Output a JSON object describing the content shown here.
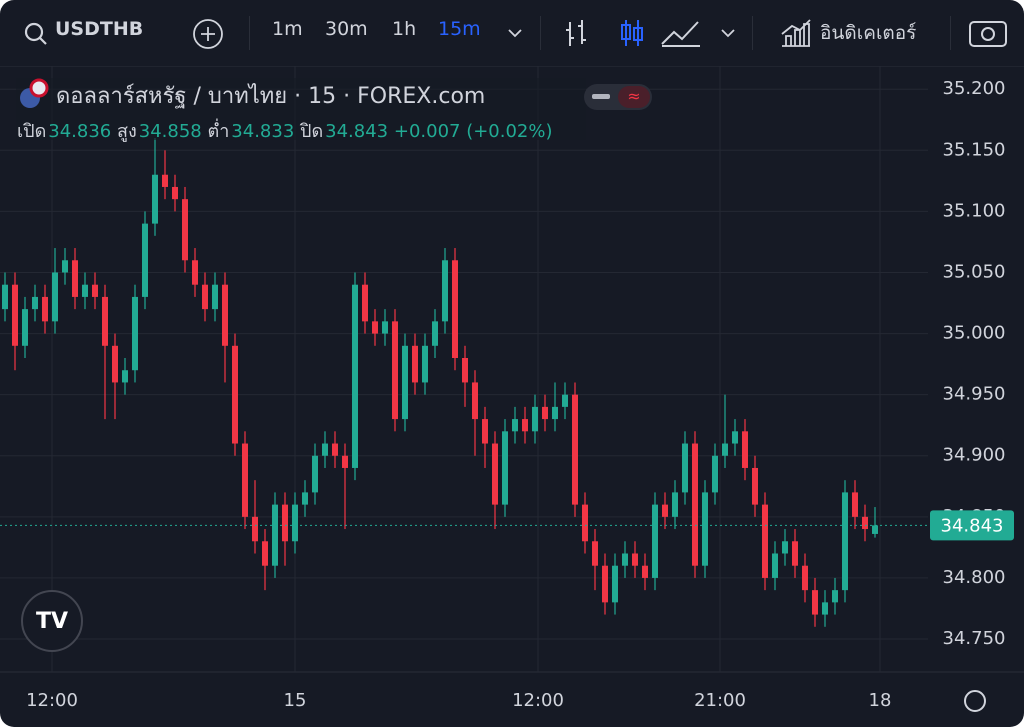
{
  "toolbar": {
    "symbol": "USDTHB",
    "intervals": [
      "1m",
      "30m",
      "1h",
      "15m"
    ],
    "indicators": "อินดิเคเตอร์"
  },
  "chart_data": {
    "type": "candlestick",
    "title": "ดอลลาร์สหรัฐ / บาทไทย · 15 · FOREX.com",
    "ohlc_labels": [
      "เปิด",
      "สูง",
      "ต่ำ",
      "ปิด"
    ],
    "change_text": "+0.007 (+0.02%)",
    "up_color": "#22ab94",
    "down_color": "#f23645",
    "open": [
      35.02,
      35.04,
      34.99,
      35.02,
      35.03,
      35.01,
      35.05,
      35.06,
      35.03,
      35.04,
      35.03,
      34.99,
      34.96,
      34.97,
      35.03,
      35.09,
      35.13,
      35.12,
      35.11,
      35.06,
      35.04,
      35.02,
      35.04,
      34.99,
      34.91,
      34.85,
      34.83,
      34.81,
      34.86,
      34.83,
      34.86,
      34.87,
      34.9,
      34.91,
      34.9,
      34.89,
      35.04,
      35.01,
      35.0,
      35.01,
      34.93,
      34.99,
      34.96,
      34.99,
      35.01,
      35.06,
      34.98,
      34.96,
      34.93,
      34.91,
      34.86,
      34.92,
      34.93,
      34.92,
      34.94,
      34.93,
      34.94,
      34.95,
      34.86,
      34.83,
      34.81,
      34.78,
      34.81,
      34.82,
      34.81,
      34.8,
      34.86,
      34.85,
      34.87,
      34.91,
      34.81,
      34.87,
      34.9,
      34.91,
      34.92,
      34.89,
      34.86,
      34.8,
      34.82,
      34.83,
      34.81,
      34.79,
      34.77,
      34.78,
      34.79,
      34.87,
      34.85,
      34.836
    ],
    "high": [
      35.05,
      35.05,
      35.03,
      35.04,
      35.04,
      35.07,
      35.07,
      35.07,
      35.05,
      35.05,
      35.04,
      35.0,
      34.98,
      35.04,
      35.1,
      35.16,
      35.15,
      35.13,
      35.12,
      35.07,
      35.05,
      35.05,
      35.05,
      35.0,
      34.92,
      34.88,
      34.84,
      34.87,
      34.87,
      34.87,
      34.88,
      34.91,
      34.92,
      34.92,
      34.91,
      35.05,
      35.05,
      35.02,
      35.02,
      35.02,
      35.0,
      35.0,
      35.0,
      35.02,
      35.07,
      35.07,
      34.99,
      34.97,
      34.94,
      34.92,
      34.93,
      34.94,
      34.94,
      34.95,
      34.95,
      34.96,
      34.96,
      34.96,
      34.87,
      34.84,
      34.82,
      34.82,
      34.83,
      34.83,
      34.82,
      34.87,
      34.87,
      34.88,
      34.92,
      34.92,
      34.88,
      34.91,
      34.95,
      34.93,
      34.93,
      34.9,
      34.87,
      34.83,
      34.84,
      34.84,
      34.82,
      34.8,
      34.79,
      34.8,
      34.88,
      34.88,
      34.86,
      34.858
    ],
    "low": [
      35.01,
      34.97,
      34.98,
      35.01,
      35.0,
      35.0,
      35.04,
      35.02,
      35.02,
      35.02,
      34.93,
      34.93,
      34.95,
      34.96,
      35.02,
      35.08,
      35.11,
      35.1,
      35.05,
      35.03,
      35.01,
      35.01,
      34.96,
      34.9,
      34.84,
      34.82,
      34.79,
      34.8,
      34.81,
      34.82,
      34.85,
      34.86,
      34.89,
      34.89,
      34.84,
      34.88,
      35.0,
      34.99,
      34.99,
      34.92,
      34.92,
      34.95,
      34.95,
      34.98,
      35.0,
      34.97,
      34.94,
      34.9,
      34.89,
      34.84,
      34.85,
      34.91,
      34.91,
      34.91,
      34.92,
      34.92,
      34.93,
      34.85,
      34.82,
      34.79,
      34.77,
      34.77,
      34.8,
      34.8,
      34.79,
      34.79,
      34.84,
      34.84,
      34.86,
      34.8,
      34.8,
      34.86,
      34.89,
      34.9,
      34.88,
      34.85,
      34.79,
      34.79,
      34.81,
      34.8,
      34.78,
      34.76,
      34.76,
      34.77,
      34.78,
      34.84,
      34.83,
      34.833
    ],
    "close": [
      35.04,
      34.99,
      35.02,
      35.03,
      35.01,
      35.05,
      35.06,
      35.03,
      35.04,
      35.03,
      34.99,
      34.96,
      34.97,
      35.03,
      35.09,
      35.13,
      35.12,
      35.11,
      35.06,
      35.04,
      35.02,
      35.04,
      34.99,
      34.91,
      34.85,
      34.83,
      34.81,
      34.86,
      34.83,
      34.86,
      34.87,
      34.9,
      34.91,
      34.9,
      34.89,
      35.04,
      35.01,
      35.0,
      35.01,
      34.93,
      34.99,
      34.96,
      34.99,
      35.01,
      35.06,
      34.98,
      34.96,
      34.93,
      34.91,
      34.86,
      34.92,
      34.93,
      34.92,
      34.94,
      34.93,
      34.94,
      34.95,
      34.86,
      34.83,
      34.81,
      34.78,
      34.81,
      34.82,
      34.81,
      34.8,
      34.86,
      34.85,
      34.87,
      34.91,
      34.81,
      34.87,
      34.9,
      34.91,
      34.92,
      34.89,
      34.86,
      34.8,
      34.82,
      34.83,
      34.81,
      34.79,
      34.77,
      34.78,
      34.79,
      34.87,
      34.85,
      34.84,
      34.843
    ],
    "xlim": [
      -0.5,
      92.3
    ],
    "xticks": [
      {
        "value": 4.7,
        "label": "12:00"
      },
      {
        "value": 29,
        "label": "15"
      },
      {
        "value": 53.3,
        "label": "12:00"
      },
      {
        "value": 71.5,
        "label": "21:00"
      },
      {
        "value": 87.5,
        "label": "18"
      }
    ],
    "ylim": [
      34.723,
      35.219
    ],
    "yticks": [
      {
        "value": 34.75,
        "label": "34.750"
      },
      {
        "value": 34.8,
        "label": "34.800"
      },
      {
        "value": 34.85,
        "label": "34.850"
      },
      {
        "value": 34.9,
        "label": "34.900"
      },
      {
        "value": 34.95,
        "label": "34.950"
      },
      {
        "value": 35,
        "label": "35.000"
      },
      {
        "value": 35.05,
        "label": "35.050"
      },
      {
        "value": 35.1,
        "label": "35.100"
      },
      {
        "value": 35.15,
        "label": "35.150"
      },
      {
        "value": 35.2,
        "label": "35.200"
      }
    ],
    "grid": true
  }
}
